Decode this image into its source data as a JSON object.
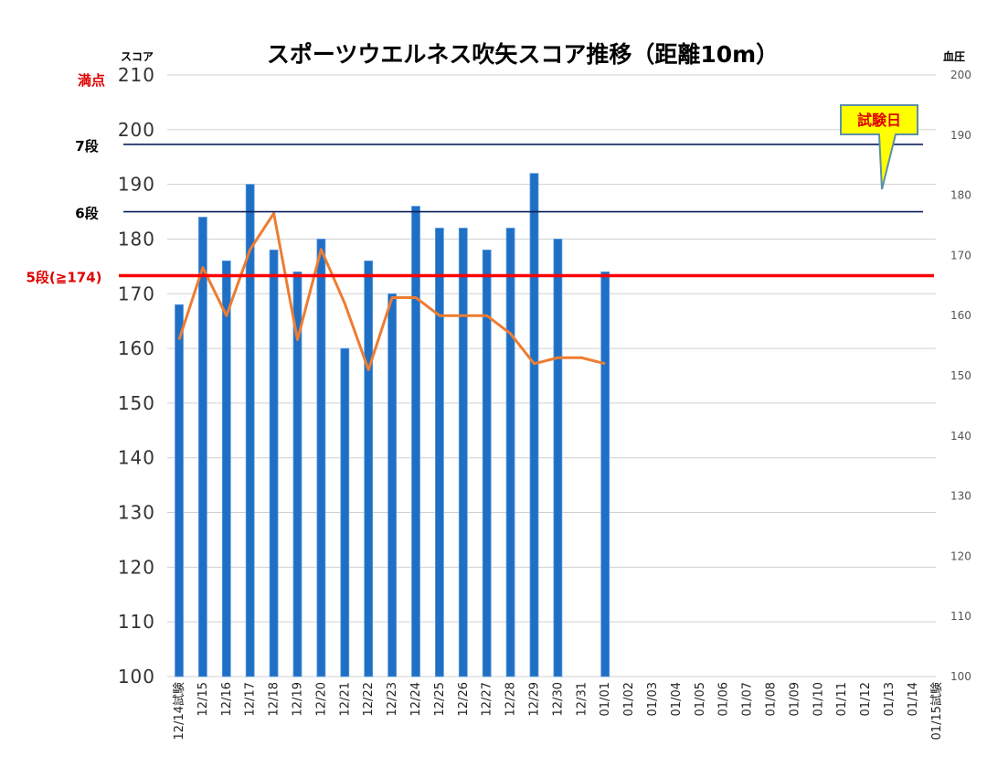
{
  "chart_data": {
    "type": "bar",
    "title": "スポーツウエルネス吹矢スコア推移（距離10m）",
    "ylabel": "スコア",
    "y2label": "血圧",
    "ylim": [
      100,
      210
    ],
    "y2lim": [
      100,
      200
    ],
    "yticks": [
      "100",
      "110",
      "120",
      "130",
      "140",
      "150",
      "160",
      "170",
      "180",
      "190",
      "200",
      "210"
    ],
    "y2ticks": [
      "100",
      "110",
      "120",
      "130",
      "140",
      "150",
      "160",
      "170",
      "180",
      "190",
      "200"
    ],
    "grid": true,
    "categories": [
      "12/14試験",
      "12/15",
      "12/16",
      "12/17",
      "12/18",
      "12/19",
      "12/20",
      "12/21",
      "12/22",
      "12/23",
      "12/24",
      "12/25",
      "12/26",
      "12/27",
      "12/28",
      "12/29",
      "12/30",
      "12/31",
      "01/01",
      "01/02",
      "01/03",
      "01/04",
      "01/05",
      "01/06",
      "01/07",
      "01/08",
      "01/09",
      "01/10",
      "01/11",
      "01/12",
      "01/13",
      "01/14",
      "01/15試験"
    ],
    "series": [
      {
        "kind": "bar",
        "axis": "left",
        "color": "#1f6fc5",
        "values": [
          168,
          184,
          176,
          190,
          178,
          174,
          180,
          160,
          176,
          170,
          186,
          182,
          182,
          178,
          182,
          192,
          180,
          null,
          174,
          null,
          null,
          null,
          null,
          null,
          null,
          null,
          null,
          null,
          null,
          null,
          null,
          null,
          null
        ]
      },
      {
        "kind": "line",
        "axis": "right",
        "color": "#ed7d31",
        "values": [
          156,
          168,
          160,
          171,
          177,
          156,
          171,
          162,
          151,
          163,
          163,
          160,
          160,
          160,
          157,
          152,
          153,
          153,
          152,
          null,
          null,
          null,
          null,
          null,
          null,
          null,
          null,
          null,
          null,
          null,
          null,
          null,
          null
        ]
      }
    ],
    "reference_lines": [
      {
        "label": "満点",
        "value": 210,
        "color": "#e00000"
      },
      {
        "label": "7段",
        "value": 197.3,
        "color": "#0a1f5c"
      },
      {
        "label": "6段",
        "value": 185,
        "color": "#0a1f5c"
      },
      {
        "label": "5段(≧174)",
        "value": 173.3,
        "color": "#ff0000"
      }
    ],
    "callout": {
      "text": "試験日",
      "fill": "#ffff00",
      "border": "#5b8fa8",
      "color": "#e00000"
    }
  }
}
